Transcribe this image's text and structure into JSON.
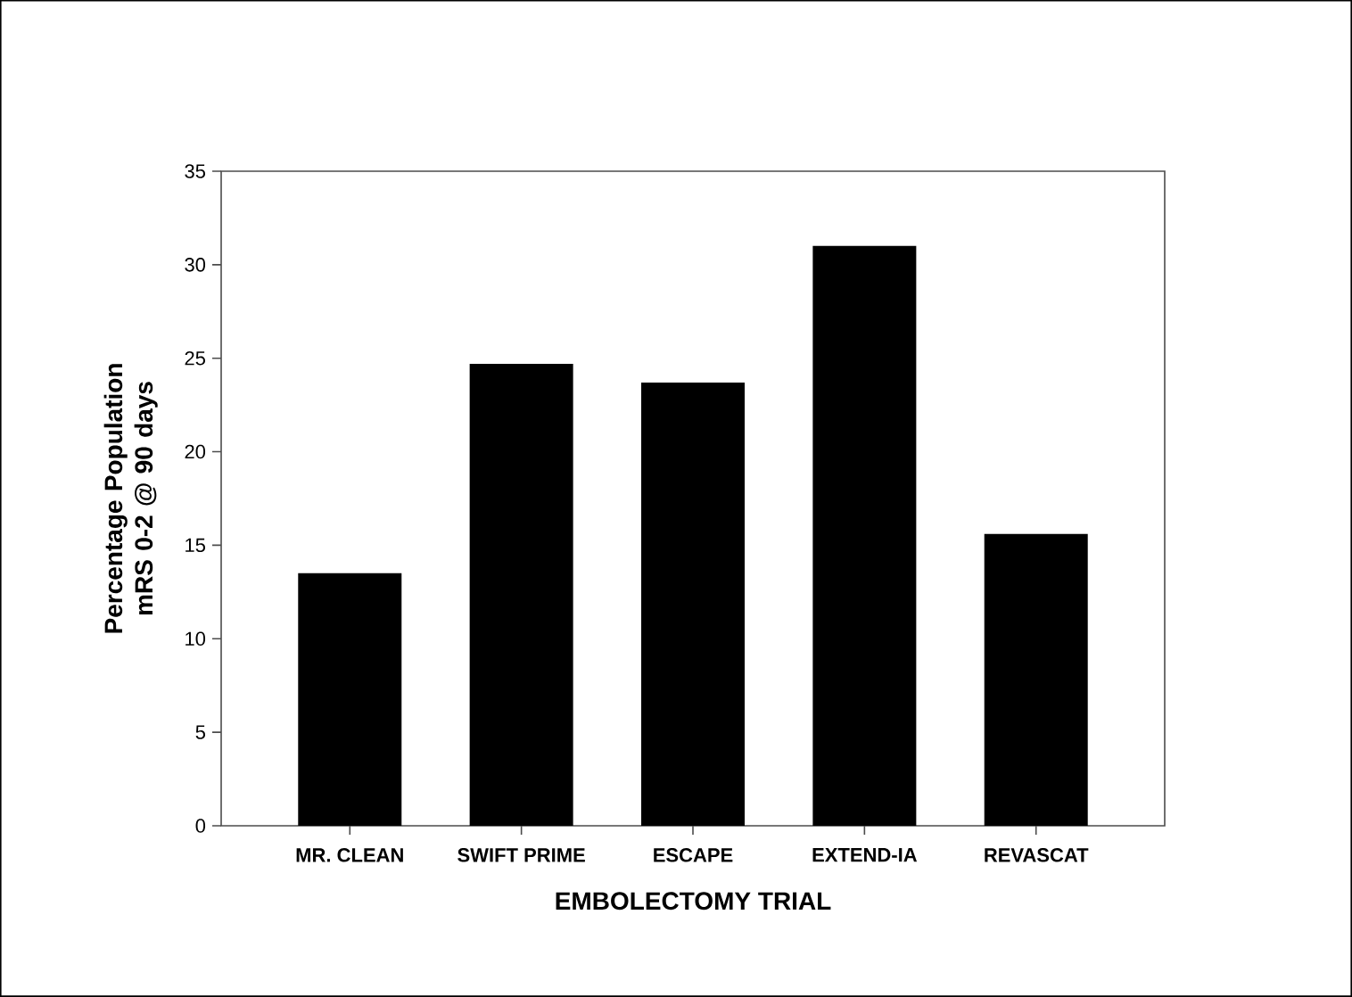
{
  "chart_data": {
    "type": "bar",
    "xlabel": "EMBOLECTOMY TRIAL",
    "ylabel": "Percentage Population\nmRS 0-2 @ 90 days",
    "categories": [
      "MR. CLEAN",
      "SWIFT PRIME",
      "ESCAPE",
      "EXTEND-IA",
      "REVASCAT"
    ],
    "values": [
      13.5,
      24.7,
      23.7,
      31.0,
      15.6
    ],
    "color": "#000000",
    "ylim": [
      0,
      35
    ],
    "yticks": [
      0,
      5,
      10,
      15,
      20,
      25,
      30,
      35
    ]
  }
}
